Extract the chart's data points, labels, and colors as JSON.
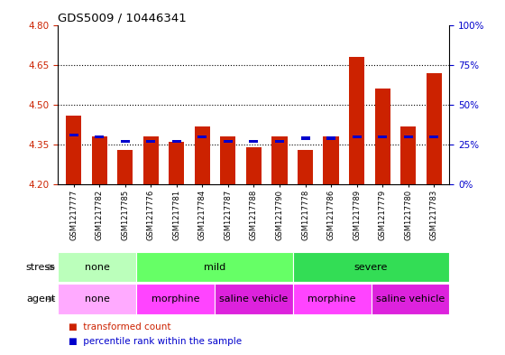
{
  "title": "GDS5009 / 10446341",
  "samples": [
    "GSM1217777",
    "GSM1217782",
    "GSM1217785",
    "GSM1217776",
    "GSM1217781",
    "GSM1217784",
    "GSM1217787",
    "GSM1217788",
    "GSM1217790",
    "GSM1217778",
    "GSM1217786",
    "GSM1217789",
    "GSM1217779",
    "GSM1217780",
    "GSM1217783"
  ],
  "transformed_count": [
    4.46,
    4.38,
    4.33,
    4.38,
    4.36,
    4.42,
    4.38,
    4.34,
    4.38,
    4.33,
    4.38,
    4.68,
    4.56,
    4.42,
    4.62
  ],
  "percentile_vals": [
    30,
    29,
    26,
    26,
    26,
    29,
    26,
    26,
    26,
    28,
    28,
    29,
    29,
    29,
    29
  ],
  "ylim_left": [
    4.2,
    4.8
  ],
  "ylim_right": [
    0,
    100
  ],
  "yticks_left": [
    4.2,
    4.35,
    4.5,
    4.65,
    4.8
  ],
  "yticks_right": [
    0,
    25,
    50,
    75,
    100
  ],
  "hlines": [
    4.35,
    4.5,
    4.65
  ],
  "bar_color": "#cc2200",
  "percentile_color": "#0000cc",
  "bar_bottom": 4.2,
  "stress_groups": [
    {
      "label": "none",
      "start": 0,
      "end": 3,
      "color": "#bbffbb"
    },
    {
      "label": "mild",
      "start": 3,
      "end": 9,
      "color": "#66ff66"
    },
    {
      "label": "severe",
      "start": 9,
      "end": 15,
      "color": "#33dd55"
    }
  ],
  "agent_groups": [
    {
      "label": "none",
      "start": 0,
      "end": 3,
      "color": "#ffaaff"
    },
    {
      "label": "morphine",
      "start": 3,
      "end": 6,
      "color": "#ff44ff"
    },
    {
      "label": "saline vehicle",
      "start": 6,
      "end": 9,
      "color": "#dd22dd"
    },
    {
      "label": "morphine",
      "start": 9,
      "end": 12,
      "color": "#ff44ff"
    },
    {
      "label": "saline vehicle",
      "start": 12,
      "end": 15,
      "color": "#dd22dd"
    }
  ],
  "xlabel_stress": "stress",
  "xlabel_agent": "agent",
  "legend_bar": "transformed count",
  "legend_pct": "percentile rank within the sample",
  "tick_color_left": "#cc2200",
  "tick_color_right": "#0000cc",
  "bg_color": "#ffffff"
}
